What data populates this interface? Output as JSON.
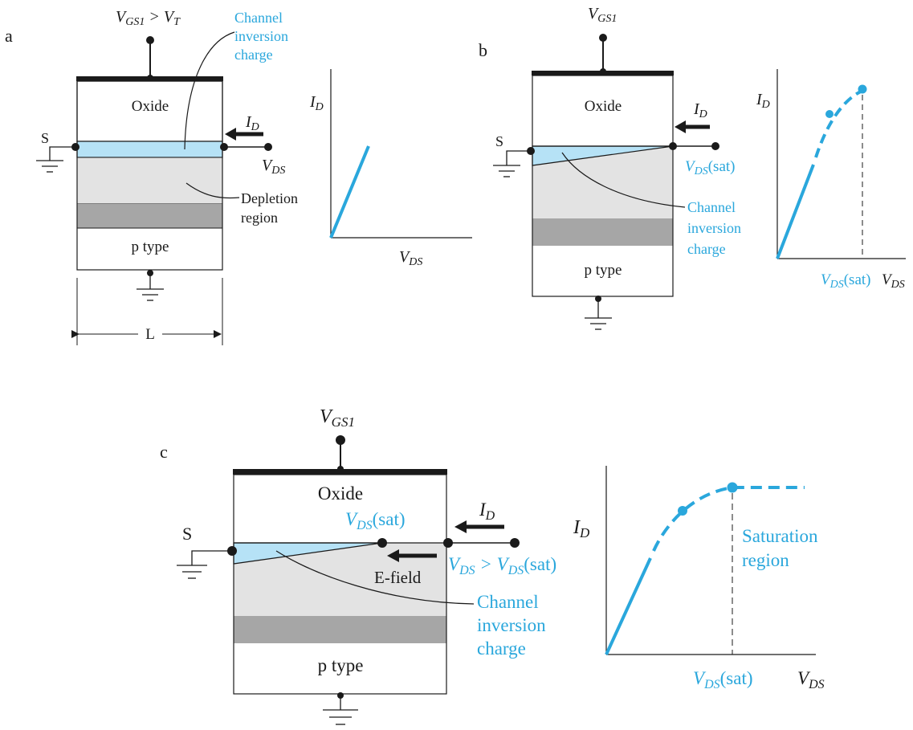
{
  "colors": {
    "accent": "#2aa7dc",
    "channel_fill": "#b6e2f6",
    "depletion_fill": "#e3e3e3",
    "substrate_band": "#a6a6a6",
    "ink": "#1a1a1a"
  },
  "panel_a": {
    "letter": "a",
    "gate_v": "V",
    "gate_sub": "GS1",
    "gate_rel": " > V",
    "gate_rel_sub": "T",
    "oxide": "Oxide",
    "source": "S",
    "id": "I",
    "id_sub": "D",
    "vds": "V",
    "vds_sub": "DS",
    "channel_l1": "Channel",
    "channel_l2": "inversion",
    "channel_l3": "charge",
    "depl_l1": "Depletion",
    "depl_l2": "region",
    "ptype": "p type",
    "length": "L",
    "plot_y": "I",
    "plot_y_sub": "D",
    "plot_x": "V",
    "plot_x_sub": "DS"
  },
  "panel_b": {
    "letter": "b",
    "gate_v": "V",
    "gate_sub": "GS1",
    "oxide": "Oxide",
    "source": "S",
    "id": "I",
    "id_sub": "D",
    "vdssat_v": "V",
    "vdssat_sub": "DS",
    "vdssat_paren": "(sat)",
    "channel_l1": "Channel",
    "channel_l2": "inversion",
    "channel_l3": "charge",
    "ptype": "p type",
    "plot_y": "I",
    "plot_y_sub": "D",
    "plot_xsat_v": "V",
    "plot_xsat_sub": "DS",
    "plot_xsat_paren": "(sat)",
    "plot_x": "V",
    "plot_x_sub": "DS"
  },
  "panel_c": {
    "letter": "c",
    "gate_v": "V",
    "gate_sub": "GS1",
    "oxide": "Oxide",
    "source": "S",
    "id": "I",
    "id_sub": "D",
    "sat_v": "V",
    "sat_sub": "DS",
    "sat_paren": "(sat)",
    "vcond_v": "V",
    "vcond_sub": "DS",
    "vcond_rel": " > V",
    "vcond_sub2": "DS",
    "vcond_paren": "(sat)",
    "efield": "E-field",
    "channel_l1": "Channel",
    "channel_l2": "inversion",
    "channel_l3": "charge",
    "ptype": "p type",
    "plot_y": "I",
    "plot_y_sub": "D",
    "satregion_l1": "Saturation",
    "satregion_l2": "region",
    "plot_xsat_v": "V",
    "plot_xsat_sub": "DS",
    "plot_xsat_paren": "(sat)",
    "plot_x": "V",
    "plot_x_sub": "DS"
  }
}
